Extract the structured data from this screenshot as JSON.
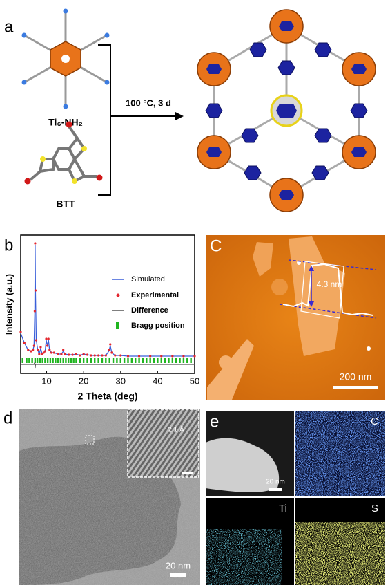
{
  "panel_a": {
    "label": "a",
    "ti6_label": "Ti₆-NH₂",
    "condition": "100 °C, 3 d",
    "btt_label": "BTT"
  },
  "chart_data": {
    "type": "line",
    "panel_label": "b",
    "x_label": "2 Theta (deg)",
    "y_label": "Intensity (a.u.)",
    "xlim": [
      3,
      50
    ],
    "xticks": [
      10,
      20,
      30,
      40,
      50
    ],
    "ylim": [
      0,
      100
    ],
    "x": [
      3,
      4,
      5,
      5.8,
      6.3,
      6.6,
      6.8,
      6.9,
      7.0,
      7.2,
      7.6,
      8.0,
      8.4,
      8.8,
      9.2,
      9.6,
      9.9,
      10.2,
      10.5,
      10.8,
      11.3,
      12,
      13,
      14,
      14.5,
      15,
      16,
      17,
      18,
      19,
      20,
      21,
      22,
      23,
      24,
      25,
      26,
      26.8,
      27.2,
      27.6,
      28.5,
      30,
      32,
      35,
      38,
      41,
      44,
      47,
      50
    ],
    "series": [
      {
        "name": "Simulated",
        "color": "#3a5fd9",
        "values": [
          29,
          22,
          17,
          16,
          17,
          20,
          44,
          93,
          59,
          24,
          17,
          14,
          18,
          14,
          15,
          16,
          24,
          20,
          24,
          17,
          15,
          15,
          14,
          14,
          16,
          14,
          13.5,
          13.5,
          14,
          13,
          14,
          13.5,
          13,
          13,
          13,
          13,
          13,
          16,
          20,
          15,
          13,
          13,
          12.5,
          12.5,
          12.5,
          12.5,
          12.5,
          12.5,
          12.5
        ]
      },
      {
        "name": "Experimental",
        "color": "#e3262e",
        "values": [
          30,
          22,
          17,
          16,
          17,
          20,
          45,
          94,
          60,
          24,
          17,
          14,
          19,
          14,
          15,
          16,
          25,
          20,
          25,
          17,
          15,
          15,
          14,
          14,
          17,
          14,
          13.5,
          13.5,
          14,
          13,
          14,
          13.5,
          13,
          13,
          13,
          13,
          13,
          17,
          21,
          15,
          13,
          13,
          12.5,
          12.5,
          12.5,
          12.5,
          12.5,
          12.5,
          12.5
        ]
      },
      {
        "name": "Difference",
        "color": "#555555",
        "values": [
          6.5,
          6.5,
          6.5,
          6.5,
          6.5,
          6.5,
          8,
          4,
          6.5,
          6.5,
          6.5,
          6.5,
          6.5,
          6.5,
          6.5,
          6.5,
          6.5,
          6.5,
          6.5,
          6.5,
          6.5,
          6.5,
          6.5,
          6.5,
          6.5,
          6.5,
          6.5,
          6.5,
          6.5,
          6.5,
          6.5,
          6.5,
          6.5,
          6.5,
          6.5,
          6.5,
          6.5,
          6.5,
          6.5,
          6.5,
          6.5,
          6.5,
          6.5,
          6.5,
          6.5,
          6.5,
          6.5,
          6.5,
          6.5
        ]
      }
    ],
    "bragg": {
      "name": "Bragg position",
      "color": "#1fb51f",
      "x": [
        3.5,
        4.6,
        5.3,
        6.1,
        6.9,
        7.5,
        8.2,
        8.9,
        9.6,
        10.3,
        11,
        11.7,
        12.4,
        13.1,
        13.8,
        14.5,
        15.2,
        15.9,
        16.6,
        17.3,
        18,
        19,
        20,
        21,
        22,
        23,
        24,
        25,
        26,
        27,
        28,
        29,
        30,
        31,
        32,
        33,
        34,
        35,
        36,
        37,
        38,
        39,
        40,
        41,
        42,
        43,
        44,
        45,
        46,
        47,
        48,
        49
      ]
    }
  },
  "panel_c": {
    "label": "C",
    "height_label": "4.3 nm",
    "scale_label": "200 nm"
  },
  "panel_d": {
    "label": "d",
    "inset_label": "2.1 Å",
    "scale_label": "20 nm"
  },
  "panel_e": {
    "label": "e",
    "scale_label": "20 nm",
    "maps": [
      "C",
      "Ti",
      "S"
    ]
  }
}
